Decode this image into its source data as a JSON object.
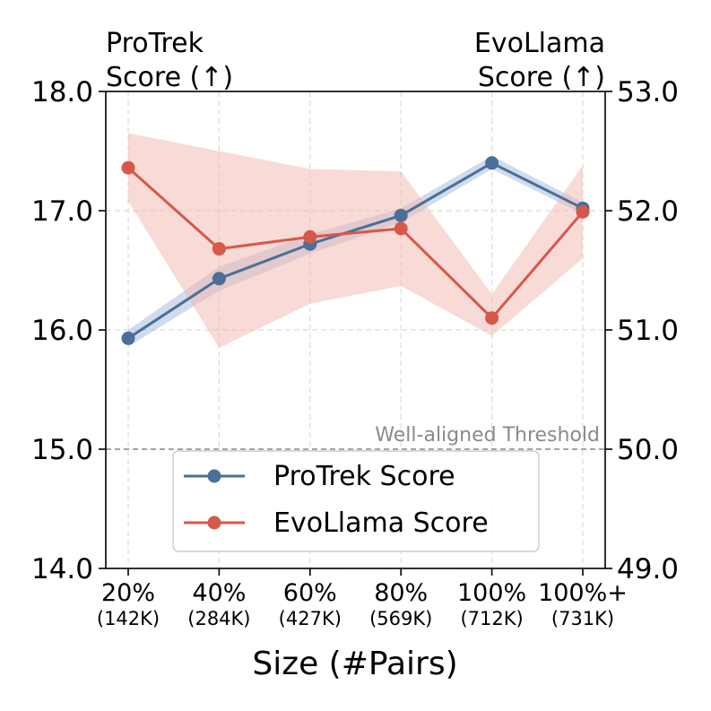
{
  "chart_data": {
    "type": "line",
    "xlabel": "Size (#Pairs)",
    "categories": [
      {
        "label": "20%",
        "sub": "(142K)"
      },
      {
        "label": "40%",
        "sub": "(284K)"
      },
      {
        "label": "60%",
        "sub": "(427K)"
      },
      {
        "label": "80%",
        "sub": "(569K)"
      },
      {
        "label": "100%",
        "sub": "(712K)"
      },
      {
        "label": "100%+",
        "sub": "(731K)"
      }
    ],
    "left_axis": {
      "title_line1": "ProTrek",
      "title_line2": "Score (↑)",
      "ylim": [
        14.0,
        18.0
      ],
      "ticks": [
        "14.0",
        "15.0",
        "16.0",
        "17.0",
        "18.0"
      ]
    },
    "right_axis": {
      "title_line1": "EvoLlama",
      "title_line2": "Score (↑)",
      "ylim": [
        49.0,
        53.0
      ],
      "ticks": [
        "49.0",
        "50.0",
        "51.0",
        "52.0",
        "53.0"
      ]
    },
    "threshold": {
      "label": "Well-aligned Threshold",
      "left_value": 15.0
    },
    "series": [
      {
        "name": "ProTrek Score",
        "axis": "left",
        "color": "#4a6f98",
        "band_color": "#a9c0df",
        "values": [
          15.93,
          16.43,
          16.72,
          16.96,
          17.4,
          17.02
        ],
        "lower": [
          15.86,
          16.33,
          16.64,
          16.9,
          17.35,
          16.97
        ],
        "upper": [
          16.0,
          16.53,
          16.8,
          17.02,
          17.46,
          17.07
        ]
      },
      {
        "name": "EvoLlama Score",
        "axis": "right",
        "color": "#d6584a",
        "band_color": "#f2b6ad",
        "values": [
          52.36,
          51.68,
          51.78,
          51.85,
          51.1,
          51.99
        ],
        "lower": [
          52.08,
          50.85,
          51.22,
          51.37,
          50.95,
          51.6
        ],
        "upper": [
          52.65,
          52.5,
          52.35,
          52.33,
          51.3,
          52.38
        ]
      }
    ],
    "legend_position": "lower-center"
  }
}
